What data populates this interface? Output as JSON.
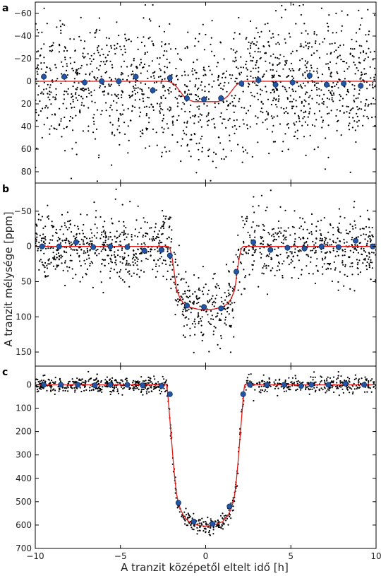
{
  "figure": {
    "xlabel": "A tranzit középetől eltelt idő [h]",
    "ylabel": "A tranzit mélysége [ppm]",
    "xlim": [
      -10,
      10
    ],
    "xticks": [
      -10,
      -5,
      0,
      5,
      10
    ],
    "colors": {
      "raw": "#000000",
      "binned": "#2255a4",
      "binned_edge": "#0d2d5e",
      "model": "#e01818",
      "frame": "#000000"
    }
  },
  "chart_data": [
    {
      "type": "scatter",
      "panel_label": "a",
      "ylim": [
        -70,
        90
      ],
      "y_inverted": true,
      "yticks": [
        -60,
        -40,
        -20,
        0,
        20,
        40,
        60,
        80
      ],
      "raw_scatter": {
        "n_points": 1500,
        "noise_sd_ppm": 28
      },
      "model": {
        "name": "transit model",
        "x": [
          -10,
          -2.3,
          -2.1,
          -1.9,
          -1.7,
          -1.5,
          -1.3,
          -1.1,
          -0.9,
          -0.7,
          0.7,
          0.9,
          1.1,
          1.3,
          1.5,
          1.7,
          1.9,
          2.1,
          2.3,
          10
        ],
        "y": [
          0,
          0,
          0.5,
          2,
          5,
          9,
          13,
          15.5,
          17,
          18,
          18,
          17,
          15.5,
          13,
          9,
          5,
          2,
          0.5,
          0,
          0
        ]
      },
      "binned": {
        "name": "binned data",
        "x": [
          -9.5,
          -8.3,
          -7.1,
          -6.1,
          -5.1,
          -4.1,
          -3.1,
          -2.1,
          -1.1,
          -0.1,
          0.9,
          2.1,
          3.1,
          4.1,
          5.1,
          6.1,
          7.1,
          8.1,
          9.1
        ],
        "y": [
          -4,
          -4,
          1,
          0,
          0,
          -4,
          8,
          -3,
          15,
          16,
          15,
          2,
          -1,
          3,
          1,
          -5,
          3,
          2,
          4
        ],
        "yerr": 3
      }
    },
    {
      "type": "scatter",
      "panel_label": "b",
      "ylim": [
        -90,
        170
      ],
      "y_inverted": true,
      "yticks": [
        -50,
        0,
        50,
        100,
        150
      ],
      "raw_scatter": {
        "n_points": 1300,
        "noise_sd_ppm": 24
      },
      "model": {
        "name": "transit model",
        "x": [
          -10,
          -2.2,
          -2.1,
          -2.0,
          -1.9,
          -1.8,
          -1.7,
          -1.5,
          -1.3,
          -1.0,
          -0.5,
          0,
          0.5,
          1.0,
          1.3,
          1.5,
          1.7,
          1.8,
          1.9,
          2.0,
          2.1,
          2.2,
          10
        ],
        "y": [
          0,
          0,
          3,
          12,
          27,
          45,
          62,
          74,
          81,
          86,
          89,
          90,
          89,
          86,
          81,
          74,
          62,
          45,
          27,
          12,
          3,
          0,
          0
        ]
      },
      "binned": {
        "name": "binned data",
        "x": [
          -9.6,
          -8.6,
          -7.6,
          -6.6,
          -5.6,
          -4.6,
          -3.6,
          -2.6,
          -2.1,
          -1.1,
          -0.1,
          0.9,
          1.8,
          2.8,
          3.8,
          4.8,
          5.8,
          6.8,
          7.8,
          8.8,
          9.8
        ],
        "y": [
          0,
          0,
          -6,
          1,
          0,
          1,
          6,
          5,
          13,
          84,
          86,
          88,
          36,
          -6,
          5,
          2,
          3,
          0,
          1,
          -8,
          0
        ],
        "yerr": 4
      }
    },
    {
      "type": "scatter",
      "panel_label": "c",
      "ylim": [
        -80,
        700
      ],
      "y_inverted": true,
      "yticks": [
        0,
        100,
        200,
        300,
        400,
        500,
        600,
        700
      ],
      "raw_scatter": {
        "n_points": 950,
        "noise_sd_ppm": 18
      },
      "model": {
        "name": "transit model",
        "x": [
          -10,
          -2.3,
          -2.25,
          -2.2,
          -2.1,
          -2.0,
          -1.9,
          -1.8,
          -1.7,
          -1.6,
          -1.5,
          -1.3,
          -1.0,
          -0.5,
          0,
          0.5,
          1.0,
          1.3,
          1.5,
          1.6,
          1.7,
          1.8,
          1.9,
          2.0,
          2.1,
          2.2,
          2.25,
          2.3,
          10
        ],
        "y": [
          0,
          0,
          20,
          60,
          150,
          240,
          330,
          410,
          470,
          505,
          530,
          560,
          585,
          600,
          605,
          600,
          585,
          560,
          530,
          505,
          470,
          410,
          330,
          240,
          150,
          60,
          20,
          0,
          0
        ]
      },
      "binned": {
        "name": "binned data",
        "x": [
          -9.5,
          -8.5,
          -7.5,
          -6.5,
          -5.6,
          -4.6,
          -3.7,
          -2.6,
          -2.1,
          -1.6,
          -0.7,
          0.4,
          1.4,
          2.2,
          2.6,
          3.6,
          4.6,
          5.6,
          6.2,
          7.2,
          8.2,
          9.3
        ],
        "y": [
          0,
          0,
          0,
          2,
          0,
          0,
          2,
          5,
          40,
          505,
          585,
          595,
          520,
          40,
          0,
          0,
          0,
          5,
          0,
          0,
          -5,
          0
        ],
        "yerr": 8
      }
    }
  ]
}
